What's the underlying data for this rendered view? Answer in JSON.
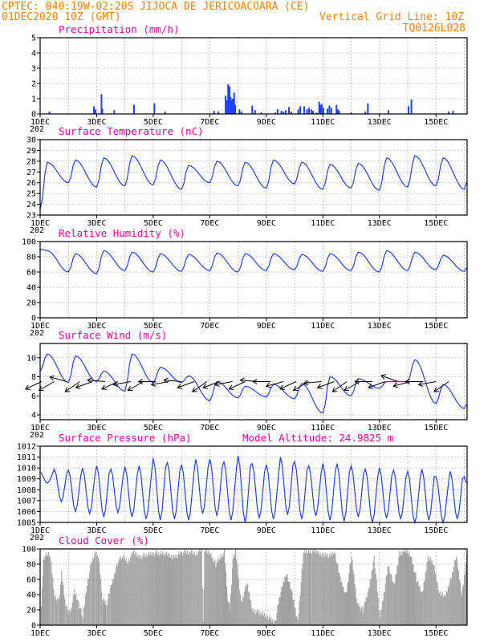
{
  "header": {
    "left_line1": "CPTEC:  040:19W-02:20S  JIJOCA DE JERICOACOARA (CE)",
    "left_line2": "01DEC2020 10Z (GMT)",
    "right_line2": "Vertical Grid Line: 10Z",
    "right_line3": "TQ0126L028"
  },
  "colors": {
    "header": "#ff8000",
    "title": "#ff00a0",
    "series": "#2040ff",
    "cloud": "#a0a0a0",
    "grid": "#909090"
  },
  "x_labels": [
    "1DEC",
    "3DEC",
    "5DEC",
    "7DEC",
    "9DEC",
    "11DEC",
    "13DEC",
    "15DEC"
  ],
  "x_label_days": [
    0,
    2,
    4,
    6,
    8,
    10,
    12,
    14
  ],
  "year_stub": "202",
  "chart_data": [
    {
      "type": "bar",
      "title": "Precipitation (mm/h)",
      "ylim": [
        0,
        5
      ],
      "yticks": [
        0,
        1,
        2,
        3,
        4,
        5
      ],
      "x_unit": "days since 01DEC2020 10Z",
      "x": [
        0.33,
        1.9,
        1.96,
        2.17,
        2.2,
        2.62,
        3.32,
        4.04,
        4.42,
        6.15,
        6.3,
        6.56,
        6.6,
        6.65,
        6.7,
        6.74,
        6.78,
        6.81,
        6.86,
        6.9,
        7.05,
        7.12,
        7.5,
        7.6,
        7.82,
        8.31,
        8.4,
        8.53,
        8.61,
        8.69,
        8.8,
        8.88,
        9.13,
        9.2,
        9.34,
        9.44,
        9.51,
        9.59,
        9.65,
        9.78,
        9.87,
        9.92,
        9.96,
        10.02,
        10.16,
        10.23,
        10.3,
        10.48,
        10.53,
        10.58,
        11.0,
        11.5,
        11.59,
        12.32,
        13.03,
        13.13,
        14.45,
        14.6
      ],
      "values": [
        0.15,
        0.5,
        0.3,
        1.3,
        0.35,
        0.25,
        0.6,
        0.7,
        0.15,
        0.2,
        0.15,
        1.2,
        0.9,
        1.95,
        1.8,
        1.1,
        0.9,
        1.0,
        1.4,
        0.6,
        0.3,
        0.15,
        0.55,
        0.25,
        0.1,
        0.1,
        0.3,
        0.2,
        0.15,
        0.25,
        0.45,
        0.15,
        0.3,
        0.5,
        0.5,
        0.3,
        0.4,
        0.3,
        0.2,
        0.1,
        0.8,
        0.6,
        0.65,
        0.4,
        0.35,
        0.55,
        0.4,
        0.6,
        0.3,
        0.2,
        0.1,
        0.15,
        0.7,
        0.25,
        0.5,
        0.95,
        0.15,
        0.2
      ]
    },
    {
      "type": "line",
      "title": "Surface Temperature (nC)",
      "ylim": [
        23,
        30
      ],
      "yticks": [
        23,
        24,
        25,
        26,
        27,
        28,
        29,
        30
      ],
      "x_unit": "days since 01DEC2020 10Z",
      "daily": [
        {
          "min": 24.3,
          "max": 27.9
        },
        {
          "min": 26.0,
          "max": 28.1
        },
        {
          "min": 25.6,
          "max": 28.3
        },
        {
          "min": 25.7,
          "max": 28.5
        },
        {
          "min": 25.8,
          "max": 28.1
        },
        {
          "min": 25.4,
          "max": 27.6
        },
        {
          "min": 26.0,
          "max": 28.0
        },
        {
          "min": 25.7,
          "max": 27.9
        },
        {
          "min": 25.5,
          "max": 28.1
        },
        {
          "min": 25.9,
          "max": 27.9
        },
        {
          "min": 25.4,
          "max": 27.7
        },
        {
          "min": 25.5,
          "max": 27.8
        },
        {
          "min": 25.3,
          "max": 28.3
        },
        {
          "min": 25.6,
          "max": 28.5
        },
        {
          "min": 25.7,
          "max": 28.3
        },
        {
          "min": 25.4,
          "max": 28.0
        }
      ],
      "start_value": 23.5
    },
    {
      "type": "line",
      "title": "Relative Humidity (%)",
      "ylim": [
        0,
        100
      ],
      "yticks": [
        0,
        20,
        40,
        60,
        80,
        100
      ],
      "x_unit": "days since 01DEC2020 10Z",
      "daily": [
        {
          "min": 62,
          "max": 88
        },
        {
          "min": 60,
          "max": 84
        },
        {
          "min": 58,
          "max": 88
        },
        {
          "min": 62,
          "max": 86
        },
        {
          "min": 60,
          "max": 84
        },
        {
          "min": 61,
          "max": 83
        },
        {
          "min": 62,
          "max": 85
        },
        {
          "min": 60,
          "max": 84
        },
        {
          "min": 62,
          "max": 84
        },
        {
          "min": 63,
          "max": 83
        },
        {
          "min": 61,
          "max": 84
        },
        {
          "min": 62,
          "max": 86
        },
        {
          "min": 60,
          "max": 88
        },
        {
          "min": 62,
          "max": 86
        },
        {
          "min": 63,
          "max": 82
        },
        {
          "min": 61,
          "max": 80
        }
      ],
      "start_value": 90
    },
    {
      "type": "line",
      "title": "Surface Wind (m/s)",
      "ylim": [
        3.5,
        11.5
      ],
      "yticks": [
        4,
        6,
        8,
        10
      ],
      "x_unit": "days since 01DEC2020 10Z",
      "daily": [
        {
          "min": 7.0,
          "max": 10.4
        },
        {
          "min": 7.4,
          "max": 10.2
        },
        {
          "min": 7.5,
          "max": 8.6
        },
        {
          "min": 6.5,
          "max": 10.4
        },
        {
          "min": 7.4,
          "max": 9.0
        },
        {
          "min": 7.4,
          "max": 8.1
        },
        {
          "min": 5.5,
          "max": 7.5
        },
        {
          "min": 5.8,
          "max": 7.0
        },
        {
          "min": 5.9,
          "max": 7.2
        },
        {
          "min": 5.7,
          "max": 7.3
        },
        {
          "min": 4.2,
          "max": 8.0
        },
        {
          "min": 6.0,
          "max": 7.8
        },
        {
          "min": 6.8,
          "max": 7.5
        },
        {
          "min": 7.5,
          "max": 9.8
        },
        {
          "min": 5.2,
          "max": 7.2
        },
        {
          "min": 4.7,
          "max": 6.5
        }
      ],
      "start_value": 8.6,
      "vector_directions_deg": [
        205,
        210,
        165,
        215,
        200,
        175,
        205,
        190,
        210,
        180,
        190,
        175,
        200,
        215,
        200,
        190,
        205,
        175,
        180,
        195,
        205,
        210,
        185,
        200,
        215,
        210,
        180,
        200,
        160,
        195,
        180,
        190,
        215
      ]
    },
    {
      "type": "line",
      "title": "Surface Pressure (hPa)",
      "annotation": "Model Altitude: 24.9825 m",
      "ylim": [
        1005,
        1012
      ],
      "yticks": [
        1005,
        1006,
        1007,
        1008,
        1009,
        1010,
        1011,
        1012
      ],
      "x_unit": "days since 01DEC2020 10Z",
      "semidiurnal": [
        {
          "min": 1008.6,
          "max": 1009.6
        },
        {
          "min": 1006.9,
          "max": 1009.9
        },
        {
          "min": 1006.0,
          "max": 1009.8
        },
        {
          "min": 1005.8,
          "max": 1010.0
        },
        {
          "min": 1005.5,
          "max": 1010.2
        },
        {
          "min": 1005.9,
          "max": 1009.9
        },
        {
          "min": 1005.5,
          "max": 1010.1
        },
        {
          "min": 1005.3,
          "max": 1010.2
        },
        {
          "min": 1005.2,
          "max": 1010.9
        },
        {
          "min": 1005.3,
          "max": 1010.5
        },
        {
          "min": 1005.2,
          "max": 1010.3
        },
        {
          "min": 1005.8,
          "max": 1010.8
        },
        {
          "min": 1005.6,
          "max": 1010.8
        },
        {
          "min": 1005.2,
          "max": 1010.6
        },
        {
          "min": 1005.0,
          "max": 1011.1
        },
        {
          "min": 1005.4,
          "max": 1010.4
        },
        {
          "min": 1005.3,
          "max": 1010.3
        },
        {
          "min": 1005.7,
          "max": 1011.0
        },
        {
          "min": 1005.3,
          "max": 1010.6
        },
        {
          "min": 1005.6,
          "max": 1010.2
        },
        {
          "min": 1005.2,
          "max": 1010.4
        },
        {
          "min": 1005.1,
          "max": 1010.4
        },
        {
          "min": 1005.5,
          "max": 1010.2
        },
        {
          "min": 1005.0,
          "max": 1009.9
        },
        {
          "min": 1005.4,
          "max": 1010.0
        },
        {
          "min": 1005.3,
          "max": 1009.8
        },
        {
          "min": 1004.9,
          "max": 1009.7
        },
        {
          "min": 1005.2,
          "max": 1009.9
        },
        {
          "min": 1005.0,
          "max": 1009.2
        },
        {
          "min": 1005.3,
          "max": 1009.7
        },
        {
          "min": 1005.5,
          "max": 1009.2
        },
        {
          "min": 1004.9,
          "max": 1008.9
        },
        {
          "min": 1005.2,
          "max": 1008.7
        }
      ]
    },
    {
      "type": "area",
      "title": "Cloud Cover (%)",
      "ylim": [
        0,
        100
      ],
      "yticks": [
        0,
        20,
        40,
        60,
        80,
        100
      ],
      "x_unit": "days since 01DEC2020 10Z",
      "x": [
        0,
        0.1,
        0.2,
        0.35,
        0.5,
        0.65,
        0.75,
        0.9,
        1.0,
        1.1,
        1.2,
        1.35,
        1.5,
        1.65,
        1.8,
        1.95,
        2.05,
        2.2,
        2.35,
        2.5,
        2.7,
        2.9,
        3.1,
        3.3,
        3.5,
        3.8,
        4.1,
        4.4,
        4.7,
        5.0,
        5.3,
        5.5,
        5.7,
        5.75,
        5.8,
        6.0,
        6.2,
        6.5,
        6.6,
        6.7,
        6.8,
        6.9,
        7.1,
        7.3,
        7.5,
        7.8,
        8.1,
        8.3,
        8.5,
        8.7,
        8.9,
        9.1,
        9.3,
        9.45,
        9.6,
        9.8,
        10.0,
        10.2,
        10.4,
        10.6,
        10.8,
        11.0,
        11.2,
        11.4,
        11.6,
        11.8,
        12.0,
        12.3,
        12.5,
        12.7,
        12.9,
        13.1,
        13.3,
        13.5,
        13.7,
        13.9,
        14.1,
        14.3,
        14.5,
        14.7,
        14.9,
        15.1
      ],
      "values": [
        5,
        85,
        95,
        90,
        40,
        30,
        70,
        25,
        15,
        25,
        45,
        30,
        10,
        55,
        80,
        95,
        90,
        35,
        30,
        50,
        80,
        90,
        85,
        95,
        90,
        92,
        95,
        93,
        90,
        95,
        96,
        95,
        98,
        2,
        97,
        95,
        80,
        97,
        40,
        20,
        90,
        97,
        30,
        55,
        20,
        15,
        10,
        5,
        45,
        70,
        40,
        5,
        95,
        97,
        98,
        95,
        93,
        90,
        98,
        60,
        40,
        90,
        30,
        20,
        45,
        90,
        10,
        80,
        50,
        95,
        97,
        92,
        60,
        40,
        90,
        80,
        45,
        35,
        60,
        90,
        40,
        96
      ]
    }
  ]
}
